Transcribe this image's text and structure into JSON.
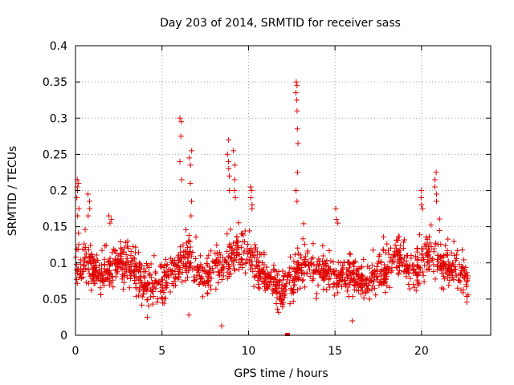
{
  "chart_data": {
    "type": "scatter",
    "title": "Day 203 of 2014, SRMTID for receiver sass",
    "xlabel": "GPS time / hours",
    "ylabel": "SRMTID / TECUs",
    "xlim": [
      0,
      24
    ],
    "ylim": [
      0,
      0.4
    ],
    "xticks": [
      0,
      5,
      10,
      15,
      20
    ],
    "xtick_labels": [
      "0",
      "5",
      "10",
      "15",
      "20"
    ],
    "yticks": [
      0,
      0.05,
      0.1,
      0.15,
      0.2,
      0.25,
      0.3,
      0.35,
      0.4
    ],
    "ytick_labels": [
      "0",
      "0.05",
      "0.1",
      "0.15",
      "0.2",
      "0.25",
      "0.3",
      "0.35",
      "0.4"
    ],
    "grid": true,
    "marker": "plus",
    "series": [
      {
        "name": "SRMTID",
        "color": "#e00000",
        "baseline": [
          [
            0.0,
            0.095
          ],
          [
            0.5,
            0.1
          ],
          [
            1.0,
            0.095
          ],
          [
            1.5,
            0.085
          ],
          [
            2.0,
            0.09
          ],
          [
            2.5,
            0.1
          ],
          [
            3.0,
            0.1
          ],
          [
            3.5,
            0.085
          ],
          [
            4.0,
            0.07
          ],
          [
            4.5,
            0.065
          ],
          [
            5.0,
            0.07
          ],
          [
            5.5,
            0.085
          ],
          [
            6.0,
            0.1
          ],
          [
            6.5,
            0.105
          ],
          [
            7.0,
            0.085
          ],
          [
            7.5,
            0.08
          ],
          [
            8.0,
            0.09
          ],
          [
            8.5,
            0.1
          ],
          [
            9.0,
            0.11
          ],
          [
            9.5,
            0.12
          ],
          [
            10.0,
            0.11
          ],
          [
            10.5,
            0.095
          ],
          [
            11.0,
            0.08
          ],
          [
            11.5,
            0.07
          ],
          [
            12.0,
            0.06
          ],
          [
            12.5,
            0.07
          ],
          [
            13.0,
            0.09
          ],
          [
            13.5,
            0.095
          ],
          [
            14.0,
            0.09
          ],
          [
            14.5,
            0.085
          ],
          [
            15.0,
            0.08
          ],
          [
            15.5,
            0.085
          ],
          [
            16.0,
            0.08
          ],
          [
            16.5,
            0.07
          ],
          [
            17.0,
            0.075
          ],
          [
            17.5,
            0.085
          ],
          [
            18.0,
            0.095
          ],
          [
            18.5,
            0.11
          ],
          [
            19.0,
            0.1
          ],
          [
            19.5,
            0.085
          ],
          [
            20.0,
            0.1
          ],
          [
            20.5,
            0.11
          ],
          [
            21.0,
            0.1
          ],
          [
            21.5,
            0.095
          ],
          [
            22.0,
            0.09
          ],
          [
            22.5,
            0.08
          ],
          [
            22.7,
            0.075
          ]
        ],
        "spread": 0.035,
        "bursts": [
          {
            "x": 0.15,
            "y": [
              0.215,
              0.205,
              0.21,
              0.2,
              0.19,
              0.175,
              0.165
            ]
          },
          {
            "x": 0.75,
            "y": [
              0.195,
              0.185,
              0.175,
              0.165
            ]
          },
          {
            "x": 6.1,
            "y": [
              0.3,
              0.295,
              0.275,
              0.24,
              0.215
            ]
          },
          {
            "x": 6.65,
            "y": [
              0.255,
              0.245,
              0.235,
              0.21,
              0.185,
              0.165
            ]
          },
          {
            "x": 8.85,
            "y": [
              0.27,
              0.25,
              0.24,
              0.23,
              0.22,
              0.2
            ]
          },
          {
            "x": 9.2,
            "y": [
              0.255,
              0.235,
              0.215,
              0.2,
              0.19
            ]
          },
          {
            "x": 10.15,
            "y": [
              0.205,
              0.2,
              0.19,
              0.18,
              0.175
            ]
          },
          {
            "x": 12.8,
            "y": [
              0.35,
              0.345,
              0.335,
              0.325,
              0.31,
              0.285,
              0.265,
              0.225,
              0.2,
              0.185
            ]
          },
          {
            "x": 20.05,
            "y": [
              0.2,
              0.19,
              0.18,
              0.175
            ]
          },
          {
            "x": 20.8,
            "y": [
              0.225,
              0.215,
              0.205,
              0.195,
              0.185
            ]
          },
          {
            "x": 2.0,
            "y": [
              0.165,
              0.16,
              0.155
            ]
          },
          {
            "x": 15.1,
            "y": [
              0.16,
              0.175,
              0.155
            ]
          }
        ],
        "isolated_points": [
          [
            8.45,
            0.013
          ],
          [
            4.15,
            0.025
          ],
          [
            6.55,
            0.028
          ],
          [
            16.0,
            0.02
          ],
          [
            12.25,
            0.0
          ]
        ]
      }
    ]
  }
}
